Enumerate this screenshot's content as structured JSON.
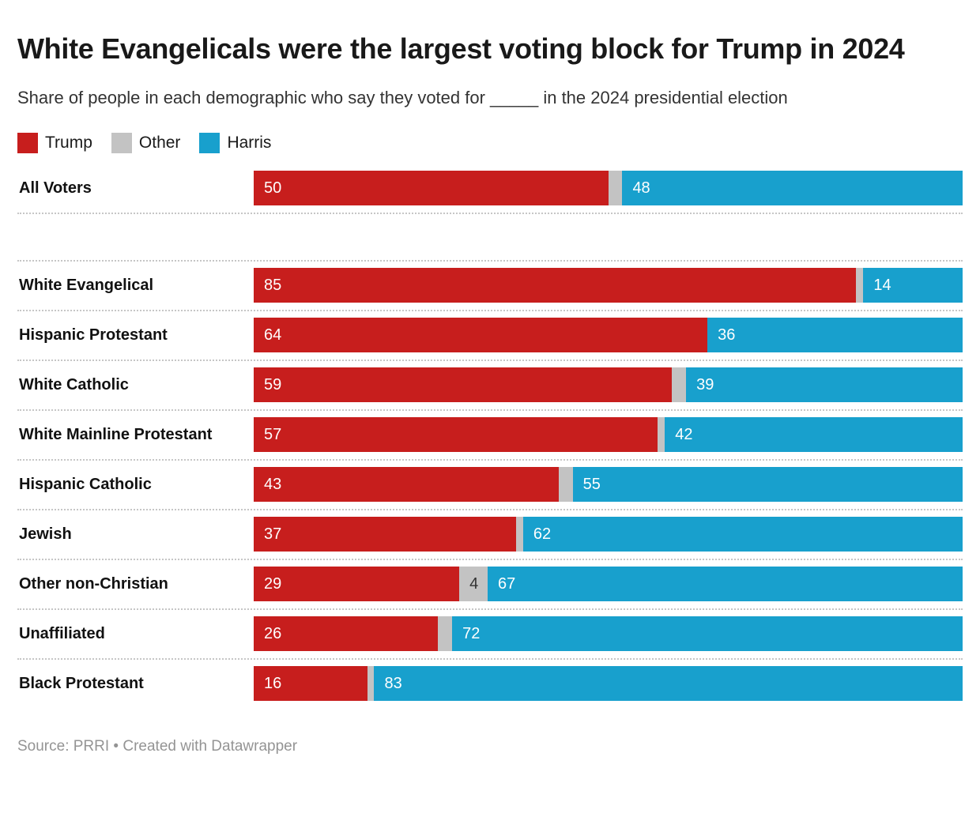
{
  "title": "White Evangelicals were the largest voting block for Trump in 2024",
  "subtitle": "Share of people in each demographic who say they voted for _____ in the 2024 presidential election",
  "legend": [
    {
      "label": "Trump",
      "color": "#c71e1d"
    },
    {
      "label": "Other",
      "color": "#c3c3c3"
    },
    {
      "label": "Harris",
      "color": "#18a0cd"
    }
  ],
  "footer": "Source: PRRI • Created with Datawrapper",
  "chart_data": {
    "type": "bar",
    "stacked": true,
    "orientation": "horizontal",
    "xlim": [
      0,
      100
    ],
    "grid": false,
    "value_labels": "inside-left",
    "label_min_value": 4,
    "gap_after_index": 0,
    "categories": [
      "All Voters",
      "White Evangelical",
      "Hispanic Protestant",
      "White Catholic",
      "White Mainline Protestant",
      "Hispanic Catholic",
      "Jewish",
      "Other non-Christian",
      "Unaffiliated",
      "Black Protestant"
    ],
    "series": [
      {
        "name": "Trump",
        "color": "#c71e1d",
        "label_color": "#ffffff",
        "values": [
          50,
          85,
          64,
          59,
          57,
          43,
          37,
          29,
          26,
          16
        ]
      },
      {
        "name": "Other",
        "color": "#c3c3c3",
        "label_color": "#333333",
        "values": [
          2,
          1,
          0,
          2,
          1,
          2,
          1,
          4,
          2,
          1
        ]
      },
      {
        "name": "Harris",
        "color": "#18a0cd",
        "label_color": "#ffffff",
        "values": [
          48,
          14,
          36,
          39,
          42,
          55,
          62,
          67,
          72,
          83
        ]
      }
    ]
  }
}
